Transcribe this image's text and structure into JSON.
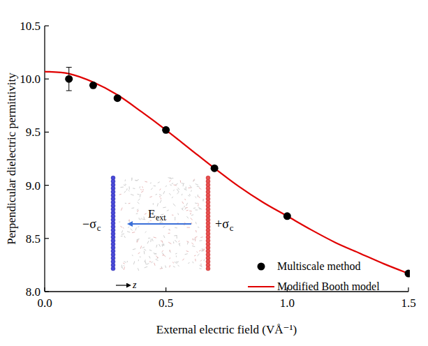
{
  "chart_data": {
    "type": "scatter",
    "x_label": "External electric field (VÅ⁻¹)",
    "y_label": "Perpendicular dielectric permittivity",
    "xlim": [
      0,
      1.5
    ],
    "ylim": [
      8.0,
      10.5
    ],
    "xticks": [
      {
        "value": 0,
        "label": "0.0"
      },
      {
        "value": 0.5,
        "label": "0.5"
      },
      {
        "value": 1.0,
        "label": "1.0"
      },
      {
        "value": 1.5,
        "label": "1.5"
      }
    ],
    "yticks": [
      {
        "value": 8.0,
        "label": "8.0"
      },
      {
        "value": 8.5,
        "label": "8.5"
      },
      {
        "value": 9.0,
        "label": "9.0"
      },
      {
        "value": 9.5,
        "label": "9.5"
      },
      {
        "value": 10.0,
        "label": "10.0"
      },
      {
        "value": 10.5,
        "label": "10.5"
      }
    ],
    "grid": false,
    "legend": "right",
    "series": [
      {
        "name": "Multiscale method",
        "type": "scatter",
        "color": "#000000",
        "marker": "circle",
        "x": [
          0.1,
          0.2,
          0.3,
          0.5,
          0.7,
          1.0,
          1.5
        ],
        "values": [
          10.0,
          9.94,
          9.82,
          9.52,
          9.16,
          8.71,
          8.17
        ],
        "errors": [
          0.11,
          null,
          null,
          null,
          null,
          null,
          null
        ]
      },
      {
        "name": "Modified Booth model",
        "type": "line",
        "color": "#e00000",
        "line_style": "solid",
        "x": [
          0,
          0.1,
          0.2,
          0.3,
          0.4,
          0.5,
          0.6,
          0.7,
          0.8,
          0.9,
          1.0,
          1.1,
          1.2,
          1.3,
          1.4,
          1.5
        ],
        "values": [
          10.07,
          10.05,
          9.97,
          9.85,
          9.69,
          9.52,
          9.34,
          9.16,
          8.99,
          8.84,
          8.71,
          8.58,
          8.46,
          8.36,
          8.26,
          8.17
        ]
      }
    ],
    "annotations": [
      {
        "text": "−σ",
        "subscript": "c"
      },
      {
        "text": "+σ",
        "subscript": "c"
      },
      {
        "text": "E",
        "subscript": "ext"
      },
      {
        "text": "z",
        "subscript": ""
      }
    ]
  }
}
